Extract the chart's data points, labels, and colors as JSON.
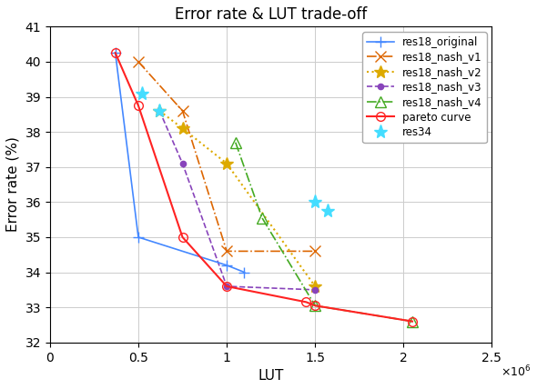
{
  "title": "Error rate & LUT trade-off",
  "xlabel": "LUT",
  "ylabel": "Error rate (%)",
  "xlim": [
    0,
    2500000.0
  ],
  "ylim": [
    32,
    41
  ],
  "xscale_exp": 6,
  "res18_original": {
    "x": [
      370000.0,
      500000.0,
      1000000.0,
      1100000.0
    ],
    "y": [
      40.25,
      35.0,
      34.2,
      34.0
    ],
    "color": "#4488ff",
    "linestyle": "-",
    "marker": "+",
    "linewidth": 1.2,
    "markersize": 9,
    "label": "res18_original"
  },
  "res18_nash_v1": {
    "x": [
      500000.0,
      750000.0,
      1000000.0,
      1500000.0
    ],
    "y": [
      40.0,
      38.6,
      34.6,
      34.6
    ],
    "color": "#dd6600",
    "linestyle": "-.",
    "marker": "x",
    "linewidth": 1.2,
    "markersize": 8,
    "label": "res18_nash_v1"
  },
  "res18_nash_v2": {
    "x": [
      620000.0,
      750000.0,
      1000000.0,
      1500000.0
    ],
    "y": [
      38.6,
      38.1,
      37.1,
      33.6
    ],
    "color": "#ddaa00",
    "linestyle": ":",
    "marker": "*",
    "linewidth": 1.5,
    "markersize": 10,
    "label": "res18_nash_v2"
  },
  "res18_nash_v3": {
    "x": [
      620000.0,
      750000.0,
      1000000.0,
      1500000.0
    ],
    "y": [
      38.6,
      37.1,
      33.6,
      33.5
    ],
    "color": "#8844bb",
    "linestyle": "--",
    "marker": ".",
    "linewidth": 1.2,
    "markersize": 9,
    "label": "res18_nash_v3"
  },
  "res18_nash_v4": {
    "x": [
      1050000.0,
      1200000.0,
      1500000.0,
      2050000.0
    ],
    "y": [
      37.7,
      35.55,
      33.05,
      32.6
    ],
    "color": "#44aa22",
    "linestyle": "-.",
    "marker": "^",
    "linewidth": 1.2,
    "markersize": 8,
    "label": "res18_nash_v4",
    "markerfacecolor": "none"
  },
  "pareto": {
    "x": [
      370000.0,
      500000.0,
      750000.0,
      1000000.0,
      1450000.0,
      1500000.0,
      2050000.0
    ],
    "y": [
      40.25,
      38.75,
      35.0,
      33.6,
      33.15,
      33.05,
      32.6
    ],
    "color": "#ff2222",
    "linestyle": "-",
    "marker": "o",
    "linewidth": 1.5,
    "markersize": 7,
    "label": "pareto curve",
    "markerfacecolor": "none"
  },
  "res34": {
    "x": [
      520000.0,
      620000.0,
      1500000.0,
      1570000.0
    ],
    "y": [
      39.1,
      38.6,
      36.0,
      35.75
    ],
    "color": "#44ddff",
    "linestyle": "none",
    "marker": "*",
    "markersize": 11,
    "label": "res34"
  },
  "background_color": "#ffffff",
  "grid_color": "#cccccc"
}
